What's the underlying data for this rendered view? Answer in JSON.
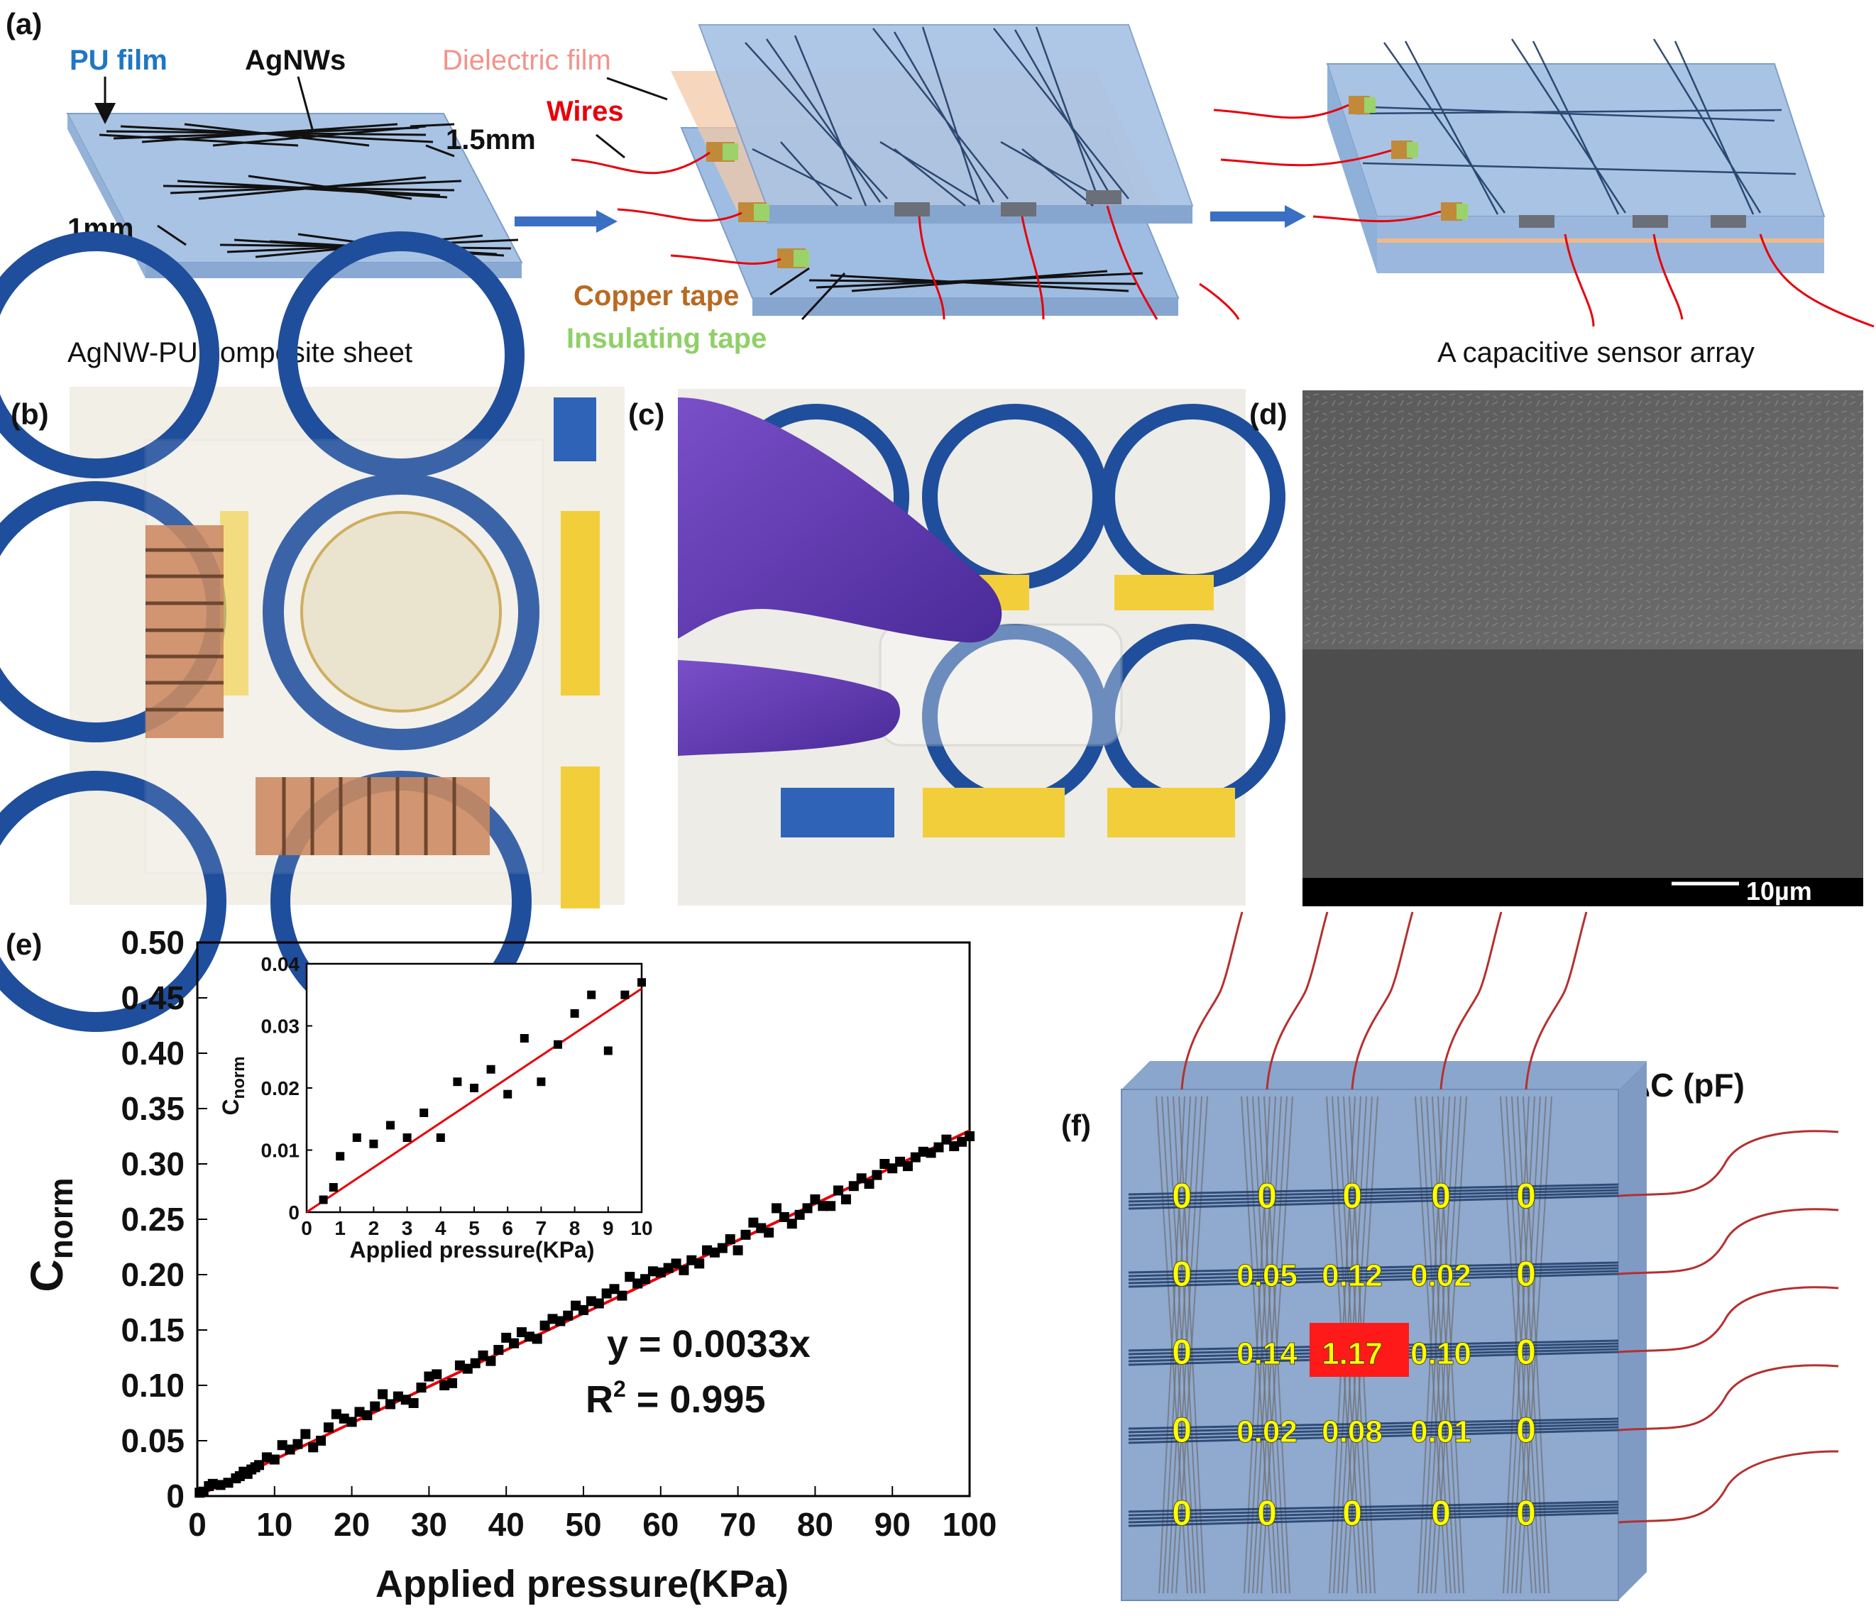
{
  "panel_a": {
    "label": "(a)",
    "pu_film": "PU film",
    "agnws": "AgNWs",
    "dim_line": "1.5mm",
    "dim_gap": "1mm",
    "dielectric": "Dielectric film",
    "wires": "Wires",
    "copper": "Copper tape",
    "insulating": "Insulating tape",
    "caption_left": "AgNW-PU composite sheet",
    "caption_right": "A capacitive sensor array"
  },
  "panel_b": {
    "label": "(b)"
  },
  "panel_c": {
    "label": "(c)"
  },
  "panel_d": {
    "label": "(d)",
    "scale_bar": "10µm"
  },
  "panel_e": {
    "label": "(e)"
  },
  "panel_f": {
    "label": "(f)",
    "title": "ΔC (pF)",
    "values": [
      [
        "0",
        "0",
        "0",
        "0",
        "0"
      ],
      [
        "0",
        "0.05",
        "0.12",
        "0.02",
        "0"
      ],
      [
        "0",
        "0.14",
        "1.17",
        "0.10",
        "0"
      ],
      [
        "0",
        "0.02",
        "0.08",
        "0.01",
        "0"
      ],
      [
        "0",
        "0",
        "0",
        "0",
        "0"
      ]
    ],
    "highlight_color": "#ff1a1a",
    "value_color": "#ffff00"
  },
  "chart_data": [
    {
      "type": "scatter",
      "xlabel": "Applied pressure(KPa)",
      "ylabel_main": "C",
      "ylabel_sub": "norm",
      "xlim": [
        0,
        100
      ],
      "ylim": [
        0,
        0.5
      ],
      "xticks": [
        "0",
        "10",
        "20",
        "30",
        "40",
        "50",
        "60",
        "70",
        "80",
        "90",
        "100"
      ],
      "yticks": [
        "0",
        "0.05",
        "0.10",
        "0.15",
        "0.20",
        "0.25",
        "0.30",
        "0.35",
        "0.40",
        "0.45",
        "0.50"
      ],
      "equation": "y =  0.0033x",
      "r2_label": "R",
      "r2_sup": "2",
      "r2_value": " = 0.995",
      "fit": {
        "x": [
          0,
          100
        ],
        "y": [
          0,
          0.33
        ],
        "color": "#e8000b"
      },
      "series": [
        {
          "marker_color": "#000000",
          "x": [
            0.3,
            0.8,
            1.5,
            2.0,
            3.0,
            4.0,
            5.0,
            5.5,
            6.0,
            6.5,
            7.0,
            7.5,
            8.0,
            9.0,
            10.0,
            11.0,
            12.0,
            13.0,
            14.0,
            15.0,
            16.0,
            17.0,
            18.0,
            19.0,
            20.0,
            21.0,
            22.0,
            23.0,
            24.0,
            25.0,
            26.0,
            27.0,
            28.0,
            29.0,
            30.0,
            31.0,
            32.0,
            33.0,
            34.0,
            35.0,
            36.0,
            37.0,
            38.0,
            39.0,
            40.0,
            41.0,
            42.0,
            43.0,
            44.0,
            45.0,
            46.0,
            47.0,
            48.0,
            49.0,
            50.0,
            51.0,
            52.0,
            53.0,
            54.0,
            55.0,
            56.0,
            57.0,
            58.0,
            59.0,
            60.0,
            61.0,
            62.0,
            63.0,
            64.0,
            65.0,
            66.0,
            67.0,
            68.0,
            69.0,
            70.0,
            71.0,
            72.0,
            73.0,
            74.0,
            75.0,
            76.0,
            77.0,
            78.0,
            79.0,
            80.0,
            81.0,
            82.0,
            83.0,
            84.0,
            85.0,
            86.0,
            87.0,
            88.0,
            89.0,
            90.0,
            91.0,
            92.0,
            93.0,
            94.0,
            95.0,
            96.0,
            97.0,
            98.0,
            99.0,
            100.0
          ],
          "y": [
            0.003,
            0.004,
            0.009,
            0.011,
            0.01,
            0.012,
            0.016,
            0.018,
            0.022,
            0.02,
            0.024,
            0.026,
            0.028,
            0.035,
            0.033,
            0.046,
            0.042,
            0.047,
            0.056,
            0.044,
            0.05,
            0.062,
            0.074,
            0.07,
            0.067,
            0.076,
            0.073,
            0.081,
            0.092,
            0.083,
            0.09,
            0.087,
            0.084,
            0.098,
            0.108,
            0.11,
            0.1,
            0.102,
            0.118,
            0.115,
            0.12,
            0.127,
            0.122,
            0.132,
            0.143,
            0.138,
            0.148,
            0.144,
            0.142,
            0.154,
            0.16,
            0.158,
            0.163,
            0.172,
            0.168,
            0.176,
            0.174,
            0.183,
            0.187,
            0.181,
            0.198,
            0.192,
            0.196,
            0.203,
            0.202,
            0.206,
            0.21,
            0.204,
            0.213,
            0.21,
            0.222,
            0.22,
            0.224,
            0.232,
            0.222,
            0.236,
            0.247,
            0.242,
            0.238,
            0.26,
            0.252,
            0.246,
            0.254,
            0.26,
            0.268,
            0.262,
            0.262,
            0.276,
            0.268,
            0.28,
            0.287,
            0.282,
            0.29,
            0.3,
            0.296,
            0.302,
            0.298,
            0.306,
            0.311,
            0.31,
            0.315,
            0.322,
            0.316,
            0.32,
            0.325
          ]
        }
      ]
    },
    {
      "type": "scatter",
      "xlabel": "Applied pressure(KPa)",
      "ylabel_main": "C",
      "ylabel_sub": "norm",
      "xlim": [
        0,
        10
      ],
      "ylim": [
        0,
        0.04
      ],
      "xticks": [
        "0",
        "1",
        "2",
        "3",
        "4",
        "5",
        "6",
        "7",
        "8",
        "9",
        "10"
      ],
      "yticks": [
        "0",
        "0.01",
        "0.02",
        "0.03",
        "0.04"
      ],
      "fit": {
        "x": [
          0,
          10
        ],
        "y": [
          0,
          0.036
        ],
        "color": "#e8000b"
      },
      "series": [
        {
          "marker_color": "#000000",
          "x": [
            0.5,
            0.8,
            1.0,
            1.5,
            2.0,
            2.5,
            3.0,
            3.5,
            4.0,
            4.5,
            5.0,
            5.5,
            6.0,
            6.5,
            7.0,
            7.5,
            8.0,
            8.5,
            9.0,
            9.5,
            10.0
          ],
          "y": [
            0.002,
            0.004,
            0.009,
            0.012,
            0.011,
            0.014,
            0.012,
            0.016,
            0.012,
            0.021,
            0.02,
            0.023,
            0.019,
            0.028,
            0.021,
            0.027,
            0.032,
            0.035,
            0.026,
            0.035,
            0.037
          ]
        }
      ]
    }
  ]
}
